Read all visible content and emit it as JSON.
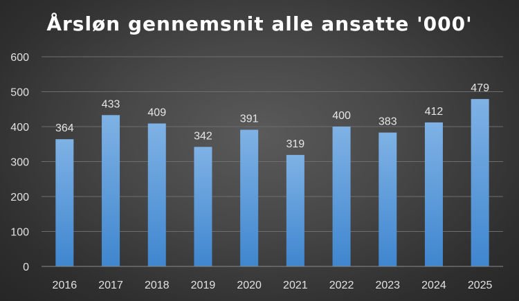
{
  "chart_data": {
    "type": "bar",
    "title": "Årsløn gennemsnit alle ansatte '000'",
    "xlabel": "",
    "ylabel": "",
    "categories": [
      "2016",
      "2017",
      "2018",
      "2019",
      "2020",
      "2021",
      "2022",
      "2023",
      "2024",
      "2025"
    ],
    "values": [
      364,
      433,
      409,
      342,
      391,
      319,
      400,
      383,
      412,
      479
    ],
    "data_labels": [
      "364",
      "433",
      "409",
      "342",
      "391",
      "319",
      "400",
      "383",
      "412",
      "479"
    ],
    "y_ticks": [
      "0",
      "100",
      "200",
      "300",
      "400",
      "500",
      "600"
    ],
    "ylim": [
      0,
      600
    ],
    "grid": true,
    "legend": "none",
    "colors": {
      "bar_top": "#7fb2e5",
      "bar_bottom": "#3f86cf",
      "gridline": "#6e6e6e",
      "axis": "#8a8a8a"
    }
  }
}
